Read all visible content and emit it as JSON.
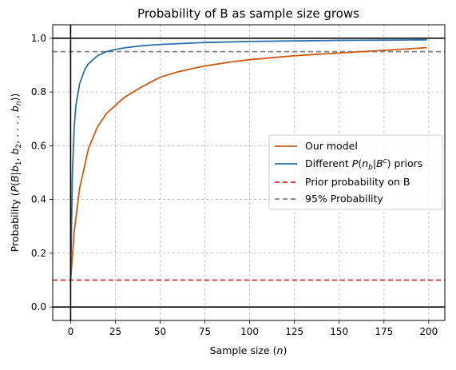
{
  "chart_data": {
    "type": "line",
    "title": "Probability of B as sample size grows",
    "xlabel": "Sample size (n)",
    "ylabel": "Probability (P(B|b1,b2,...,bn))",
    "xlim": [
      -10,
      209
    ],
    "ylim": [
      -0.05,
      1.05
    ],
    "x_ticks": [
      0,
      25,
      50,
      75,
      100,
      125,
      150,
      175,
      200
    ],
    "y_ticks": [
      0.0,
      0.2,
      0.4,
      0.6,
      0.8,
      1.0
    ],
    "x_tick_labels": [
      "0",
      "25",
      "50",
      "75",
      "100",
      "125",
      "150",
      "175",
      "200"
    ],
    "y_tick_labels": [
      "0.0",
      "0.2",
      "0.4",
      "0.6",
      "0.8",
      "1.0"
    ],
    "grid": true,
    "grid_style": "dashed",
    "legend_position": "center-right",
    "series": [
      {
        "name": "Our model",
        "color": "#cc5a10",
        "style": "solid",
        "x": [
          0,
          2,
          5,
          10,
          15,
          20,
          25,
          30,
          40,
          50,
          60,
          70,
          75,
          80,
          90,
          100,
          110,
          120,
          130,
          140,
          150,
          160,
          170,
          180,
          190,
          199
        ],
        "y": [
          0.1,
          0.28,
          0.44,
          0.59,
          0.67,
          0.72,
          0.75,
          0.78,
          0.82,
          0.855,
          0.875,
          0.89,
          0.897,
          0.902,
          0.912,
          0.92,
          0.926,
          0.932,
          0.937,
          0.941,
          0.945,
          0.949,
          0.953,
          0.957,
          0.961,
          0.965
        ]
      },
      {
        "name": "Different P(n_b|B^c) priors",
        "color": "#2a6fa8",
        "style": "solid",
        "x": [
          0,
          1,
          2,
          3,
          5,
          8,
          10,
          15,
          20,
          25,
          30,
          40,
          50,
          75,
          100,
          125,
          150,
          175,
          199
        ],
        "y": [
          0.1,
          0.5,
          0.67,
          0.75,
          0.83,
          0.885,
          0.905,
          0.935,
          0.95,
          0.958,
          0.964,
          0.972,
          0.977,
          0.984,
          0.988,
          0.99,
          0.992,
          0.993,
          0.994
        ]
      },
      {
        "name": "Prior probability on B",
        "color": "#d62728",
        "style": "dashed",
        "x": [
          -10,
          209
        ],
        "y": [
          0.1,
          0.1
        ]
      },
      {
        "name": "95% Probability",
        "color": "#808080",
        "style": "dashed",
        "x": [
          -10,
          209
        ],
        "y": [
          0.95,
          0.95
        ]
      }
    ],
    "reference_lines": {
      "horizontal": [
        0.0,
        1.0
      ],
      "vertical": [
        0
      ]
    },
    "colors": {
      "grid": "#b0b0b0",
      "reference": "#000000",
      "legend_border": "#cccccc"
    }
  }
}
